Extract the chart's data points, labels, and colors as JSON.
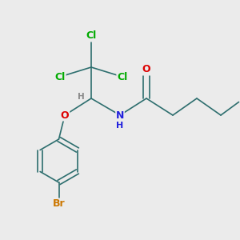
{
  "bg_color": "#ebebeb",
  "bond_color": "#2d6e6e",
  "bond_width": 1.2,
  "atom_colors": {
    "Cl": "#00aa00",
    "O": "#dd0000",
    "N": "#2222dd",
    "Br": "#cc7700",
    "H": "#888888",
    "C": "#2d2d2d"
  },
  "figsize": [
    3.0,
    3.0
  ],
  "dpi": 100
}
